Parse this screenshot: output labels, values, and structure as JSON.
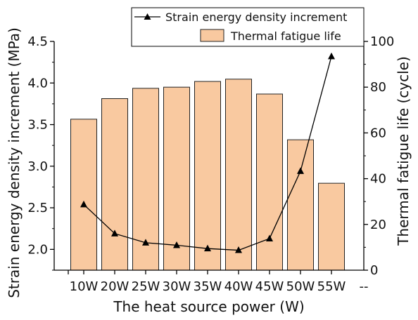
{
  "chart_data": {
    "type": "bar",
    "categories": [
      "10W",
      "20W",
      "25W",
      "30W",
      "35W",
      "40W",
      "45W",
      "50W",
      "55W"
    ],
    "x_extra_tick_label": "--",
    "xlabel": "The heat source power (W)",
    "ylabel_left": "Strain energy density increment (MPa)",
    "ylabel_right": "Thermal fatigue life (cycle)",
    "y_left": {
      "lim": [
        1.75,
        4.5
      ],
      "ticks": [
        "2.0",
        "2.5",
        "3.0",
        "3.5",
        "4.0",
        "4.5"
      ],
      "tick_values": [
        2.0,
        2.5,
        3.0,
        3.5,
        4.0,
        4.5
      ]
    },
    "y_right": {
      "lim": [
        0,
        100
      ],
      "ticks": [
        "0",
        "20",
        "40",
        "60",
        "80",
        "100"
      ],
      "tick_values": [
        0,
        20,
        40,
        60,
        80,
        100
      ]
    },
    "series": [
      {
        "name": "Strain energy density increment",
        "kind": "line",
        "axis": "left",
        "marker": "triangle",
        "color": "#000000",
        "values": [
          2.54,
          2.19,
          2.08,
          2.05,
          2.01,
          1.99,
          2.13,
          2.94,
          4.32
        ]
      },
      {
        "name": "Thermal fatigue life",
        "kind": "bar",
        "axis": "right",
        "color": "#f9c9a0",
        "edge_color": "#222222",
        "values": [
          66,
          75,
          79.5,
          80,
          82.5,
          83.5,
          77,
          57,
          38
        ]
      }
    ],
    "legend_placement": "top-right",
    "grid": false
  }
}
